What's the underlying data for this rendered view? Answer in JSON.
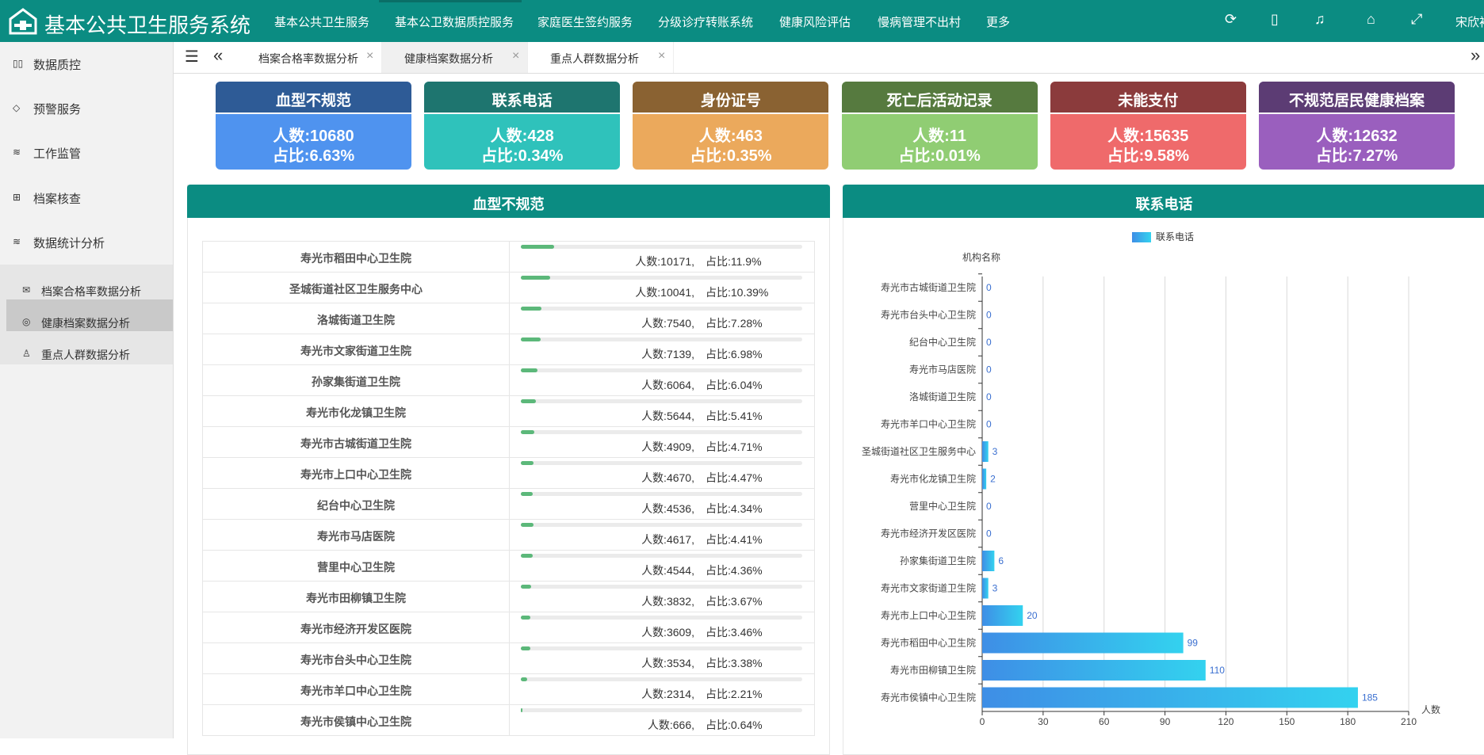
{
  "header": {
    "title": "基本公共卫生服务系统",
    "nav": [
      "基本公共卫生服务",
      "基本公卫数据质控服务",
      "家庭医生签约服务",
      "分级诊疗转账系统",
      "健康风险评估",
      "慢病管理不出村",
      "更多"
    ],
    "user": "宋欣裕"
  },
  "sidebar": {
    "items": [
      "数据质控",
      "预警服务",
      "工作监管",
      "档案核查",
      "数据统计分析"
    ],
    "children": [
      "档案合格率数据分析",
      "健康档案数据分析",
      "重点人群数据分析"
    ]
  },
  "tabs": [
    "档案合格率数据分析",
    "健康档案数据分析",
    "重点人群数据分析"
  ],
  "cards": [
    {
      "title": "血型不规范",
      "count": "人数:10680",
      "ratio": "占比:6.63%",
      "head": "#2e5b96",
      "body": "#4f93ef"
    },
    {
      "title": "联系电话",
      "count": "人数:428",
      "ratio": "占比:0.34%",
      "head": "#1e756f",
      "body": "#2fc2bb"
    },
    {
      "title": "身份证号",
      "count": "人数:463",
      "ratio": "占比:0.35%",
      "head": "#8a6232",
      "body": "#eba95c"
    },
    {
      "title": "死亡后活动记录",
      "count": "人数:11",
      "ratio": "占比:0.01%",
      "head": "#567a3f",
      "body": "#90cd73"
    },
    {
      "title": "未能支付",
      "count": "人数:15635",
      "ratio": "占比:9.58%",
      "head": "#8b3b3c",
      "body": "#ef6a6b"
    },
    {
      "title": "不规范居民健康档案",
      "count": "人数:12632",
      "ratio": "占比:7.27%",
      "head": "#5c3c74",
      "body": "#9a5fbe"
    }
  ],
  "table": {
    "title": "血型不规范",
    "rows": [
      {
        "name": "寿光市稻田中心卫生院",
        "count": "人数:10171,",
        "ratio": "占比:11.9%",
        "progress": 11.9
      },
      {
        "name": "圣城街道社区卫生服务中心",
        "count": "人数:10041,",
        "ratio": "占比:10.39%",
        "progress": 10.39
      },
      {
        "name": "洛城街道卫生院",
        "count": "人数:7540,",
        "ratio": "占比:7.28%",
        "progress": 7.28
      },
      {
        "name": "寿光市文家街道卫生院",
        "count": "人数:7139,",
        "ratio": "占比:6.98%",
        "progress": 6.98
      },
      {
        "name": "孙家集街道卫生院",
        "count": "人数:6064,",
        "ratio": "占比:6.04%",
        "progress": 6.04
      },
      {
        "name": "寿光市化龙镇卫生院",
        "count": "人数:5644,",
        "ratio": "占比:5.41%",
        "progress": 5.41
      },
      {
        "name": "寿光市古城街道卫生院",
        "count": "人数:4909,",
        "ratio": "占比:4.71%",
        "progress": 4.71
      },
      {
        "name": "寿光市上口中心卫生院",
        "count": "人数:4670,",
        "ratio": "占比:4.47%",
        "progress": 4.47
      },
      {
        "name": "纪台中心卫生院",
        "count": "人数:4536,",
        "ratio": "占比:4.34%",
        "progress": 4.34
      },
      {
        "name": "寿光市马店医院",
        "count": "人数:4617,",
        "ratio": "占比:4.41%",
        "progress": 4.41
      },
      {
        "name": "营里中心卫生院",
        "count": "人数:4544,",
        "ratio": "占比:4.36%",
        "progress": 4.36
      },
      {
        "name": "寿光市田柳镇卫生院",
        "count": "人数:3832,",
        "ratio": "占比:3.67%",
        "progress": 3.67
      },
      {
        "name": "寿光市经济开发区医院",
        "count": "人数:3609,",
        "ratio": "占比:3.46%",
        "progress": 3.46
      },
      {
        "name": "寿光市台头中心卫生院",
        "count": "人数:3534,",
        "ratio": "占比:3.38%",
        "progress": 3.38
      },
      {
        "name": "寿光市羊口中心卫生院",
        "count": "人数:2314,",
        "ratio": "占比:2.21%",
        "progress": 2.21
      },
      {
        "name": "寿光市侯镇中心卫生院",
        "count": "人数:666,",
        "ratio": "占比:0.64%",
        "progress": 0.64
      }
    ]
  },
  "chart_data": {
    "type": "hbar",
    "title": "联系电话",
    "legend": "联系电话",
    "y_label": "机构名称",
    "x_label": "人数",
    "categories": [
      "寿光市古城街道卫生院",
      "寿光市台头中心卫生院",
      "纪台中心卫生院",
      "寿光市马店医院",
      "洛城街道卫生院",
      "寿光市羊口中心卫生院",
      "圣城街道社区卫生服务中心",
      "寿光市化龙镇卫生院",
      "营里中心卫生院",
      "寿光市经济开发区医院",
      "孙家集街道卫生院",
      "寿光市文家街道卫生院",
      "寿光市上口中心卫生院",
      "寿光市稻田中心卫生院",
      "寿光市田柳镇卫生院",
      "寿光市侯镇中心卫生院"
    ],
    "values": [
      0,
      0,
      0,
      0,
      0,
      0,
      3,
      2,
      0,
      0,
      6,
      3,
      20,
      99,
      110,
      185
    ],
    "color_start": "#3e8ee6",
    "color_end": "#33d2ef",
    "xlim": [
      0,
      210
    ],
    "xticks": [
      0,
      30,
      60,
      90,
      120,
      150,
      180,
      210
    ],
    "grid": true
  }
}
